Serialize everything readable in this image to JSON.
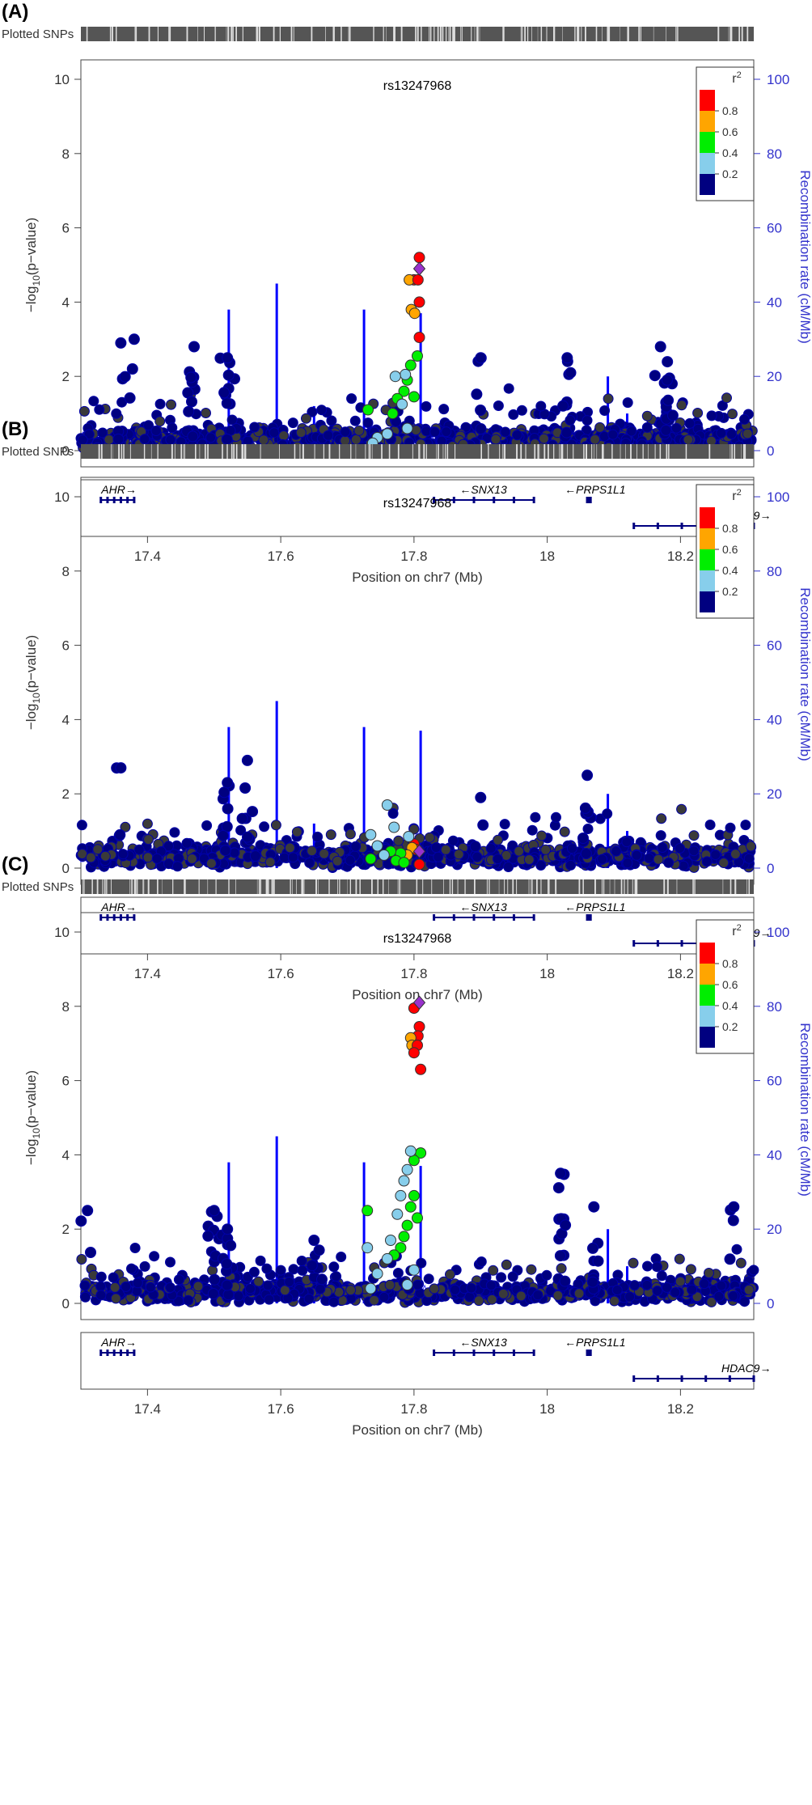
{
  "chart_data": [
    {
      "type": "scatter",
      "panel_label": "(A)",
      "plotted_snps_label": "Plotted SNPs",
      "lead_snp": "rs13247968",
      "xlabel": "Position on chr7 (Mb)",
      "ylabel_main": "−log",
      "ylabel_sub": "10",
      "ylabel_tail": "(p−value)",
      "ylabel_right": "Recombination rate (cM/Mb)",
      "xlim": [
        17.3,
        18.31
      ],
      "ylim": [
        0,
        10.5
      ],
      "x_ticks": [
        "17.4",
        "17.6",
        "17.8",
        "18",
        "18.2"
      ],
      "y_ticks": [
        "0",
        "2",
        "4",
        "6",
        "8",
        "10"
      ],
      "y2_ticks": [
        "0",
        "20",
        "40",
        "60",
        "80",
        "100"
      ],
      "legend": {
        "title": "r",
        "title_sup": "2",
        "entries": [
          "0.8",
          "0.6",
          "0.4",
          "0.2"
        ]
      },
      "genes": [
        {
          "name": "AHR",
          "strand": "+",
          "start": 17.33,
          "end": 17.38,
          "row": 1
        },
        {
          "name": "SNX13",
          "strand": "-",
          "start": 17.83,
          "end": 17.98,
          "row": 1
        },
        {
          "name": "PRPS1L1",
          "strand": "-",
          "start": 18.06,
          "end": 18.065,
          "row": 1
        },
        {
          "name": "HDAC9",
          "strand": "+",
          "start": 18.13,
          "end": 18.31,
          "row": 2
        }
      ],
      "lead_point": {
        "x": 17.808,
        "y": 4.9
      },
      "lead_neighbors": [
        {
          "x": 17.808,
          "y": 5.2,
          "r2": 0.95
        },
        {
          "x": 17.8,
          "y": 4.6,
          "r2": 0.9
        },
        {
          "x": 17.793,
          "y": 4.6,
          "r2": 0.75
        },
        {
          "x": 17.806,
          "y": 4.6,
          "r2": 0.9
        },
        {
          "x": 17.808,
          "y": 4.0,
          "r2": 0.9
        },
        {
          "x": 17.796,
          "y": 3.8,
          "r2": 0.75
        },
        {
          "x": 17.801,
          "y": 3.7,
          "r2": 0.75
        },
        {
          "x": 17.808,
          "y": 3.05,
          "r2": 0.85
        },
        {
          "x": 17.805,
          "y": 2.55,
          "r2": 0.55
        },
        {
          "x": 17.795,
          "y": 2.3,
          "r2": 0.5
        },
        {
          "x": 17.79,
          "y": 1.9,
          "r2": 0.5
        },
        {
          "x": 17.785,
          "y": 1.6,
          "r2": 0.5
        },
        {
          "x": 17.775,
          "y": 1.4,
          "r2": 0.5
        },
        {
          "x": 17.768,
          "y": 1.0,
          "r2": 0.5
        },
        {
          "x": 17.782,
          "y": 1.25,
          "r2": 0.3
        },
        {
          "x": 17.787,
          "y": 2.05,
          "r2": 0.3
        },
        {
          "x": 17.772,
          "y": 2.0,
          "r2": 0.3
        },
        {
          "x": 17.79,
          "y": 0.6,
          "r2": 0.3
        },
        {
          "x": 17.76,
          "y": 0.45,
          "r2": 0.3
        },
        {
          "x": 17.745,
          "y": 0.35,
          "r2": 0.3
        },
        {
          "x": 17.738,
          "y": 0.2,
          "r2": 0.3
        },
        {
          "x": 17.8,
          "y": 1.45,
          "r2": 0.5
        },
        {
          "x": 17.731,
          "y": 1.1,
          "r2": 0.5
        }
      ],
      "peaks": [
        {
          "x": 17.36,
          "y": 2.9,
          "n": 5
        },
        {
          "x": 17.38,
          "y": 3.0,
          "n": 2
        },
        {
          "x": 17.47,
          "y": 2.8,
          "n": 10
        },
        {
          "x": 17.52,
          "y": 2.5,
          "n": 10
        },
        {
          "x": 17.9,
          "y": 2.5,
          "n": 5
        },
        {
          "x": 18.03,
          "y": 2.5,
          "n": 8
        },
        {
          "x": 18.17,
          "y": 2.8,
          "n": 4
        },
        {
          "x": 18.18,
          "y": 1.9,
          "n": 12
        }
      ],
      "recomb_spikes": [
        {
          "x": 17.522,
          "rate": 38
        },
        {
          "x": 17.594,
          "rate": 45
        },
        {
          "x": 17.725,
          "rate": 38
        },
        {
          "x": 17.81,
          "rate": 37
        },
        {
          "x": 18.091,
          "rate": 20
        },
        {
          "x": 17.65,
          "rate": 12
        },
        {
          "x": 18.12,
          "rate": 10
        }
      ]
    },
    {
      "type": "scatter",
      "panel_label": "(B)",
      "plotted_snps_label": "Plotted SNPs",
      "lead_snp": "rs13247968",
      "xlabel": "Position on chr7 (Mb)",
      "ylabel_main": "−log",
      "ylabel_sub": "10",
      "ylabel_tail": "(p−value)",
      "ylabel_right": "Recombination rate (cM/Mb)",
      "xlim": [
        17.3,
        18.31
      ],
      "ylim": [
        0,
        10.5
      ],
      "x_ticks": [
        "17.4",
        "17.6",
        "17.8",
        "18",
        "18.2"
      ],
      "y_ticks": [
        "0",
        "2",
        "4",
        "6",
        "8",
        "10"
      ],
      "y2_ticks": [
        "0",
        "20",
        "40",
        "60",
        "80",
        "100"
      ],
      "legend": {
        "title": "r",
        "title_sup": "2",
        "entries": [
          "0.8",
          "0.6",
          "0.4",
          "0.2"
        ]
      },
      "genes": [
        {
          "name": "AHR",
          "strand": "+",
          "start": 17.33,
          "end": 17.38,
          "row": 1
        },
        {
          "name": "SNX13",
          "strand": "-",
          "start": 17.83,
          "end": 17.98,
          "row": 1
        },
        {
          "name": "PRPS1L1",
          "strand": "-",
          "start": 18.06,
          "end": 18.065,
          "row": 1
        },
        {
          "name": "HDAC9",
          "strand": "+",
          "start": 18.13,
          "end": 18.31,
          "row": 2
        }
      ],
      "lead_point": {
        "x": 17.808,
        "y": 0.45
      },
      "lead_neighbors": [
        {
          "x": 17.8,
          "y": 0.65,
          "r2": 0.95
        },
        {
          "x": 17.803,
          "y": 0.5,
          "r2": 0.9
        },
        {
          "x": 17.808,
          "y": 0.1,
          "r2": 0.9
        },
        {
          "x": 17.797,
          "y": 0.55,
          "r2": 0.75
        },
        {
          "x": 17.79,
          "y": 0.35,
          "r2": 0.75
        },
        {
          "x": 17.78,
          "y": 0.4,
          "r2": 0.5
        },
        {
          "x": 17.773,
          "y": 0.2,
          "r2": 0.5
        },
        {
          "x": 17.765,
          "y": 0.45,
          "r2": 0.5
        },
        {
          "x": 17.785,
          "y": 0.15,
          "r2": 0.5
        },
        {
          "x": 17.735,
          "y": 0.25,
          "r2": 0.5
        },
        {
          "x": 17.745,
          "y": 0.6,
          "r2": 0.3
        },
        {
          "x": 17.755,
          "y": 0.35,
          "r2": 0.3
        },
        {
          "x": 17.76,
          "y": 1.7,
          "r2": 0.3
        },
        {
          "x": 17.77,
          "y": 1.1,
          "r2": 0.3
        },
        {
          "x": 17.735,
          "y": 0.9,
          "r2": 0.3
        },
        {
          "x": 17.792,
          "y": 0.85,
          "r2": 0.3
        }
      ],
      "peaks": [
        {
          "x": 17.36,
          "y": 2.7,
          "n": 3
        },
        {
          "x": 17.55,
          "y": 2.9,
          "n": 8
        },
        {
          "x": 17.52,
          "y": 2.3,
          "n": 8
        },
        {
          "x": 18.06,
          "y": 2.5,
          "n": 8
        },
        {
          "x": 17.9,
          "y": 1.9,
          "n": 2
        }
      ],
      "recomb_spikes": [
        {
          "x": 17.522,
          "rate": 38
        },
        {
          "x": 17.594,
          "rate": 45
        },
        {
          "x": 17.725,
          "rate": 38
        },
        {
          "x": 17.81,
          "rate": 37
        },
        {
          "x": 18.091,
          "rate": 20
        },
        {
          "x": 17.65,
          "rate": 12
        },
        {
          "x": 18.12,
          "rate": 10
        }
      ]
    },
    {
      "type": "scatter",
      "panel_label": "(C)",
      "plotted_snps_label": "Plotted SNPs",
      "lead_snp": "rs13247968",
      "xlabel": "Position on chr7 (Mb)",
      "ylabel_main": "−log",
      "ylabel_sub": "10",
      "ylabel_tail": "(p−value)",
      "ylabel_right": "Recombination rate (cM/Mb)",
      "xlim": [
        17.3,
        18.31
      ],
      "ylim": [
        0,
        10.5
      ],
      "x_ticks": [
        "17.4",
        "17.6",
        "17.8",
        "18",
        "18.2"
      ],
      "y_ticks": [
        "0",
        "2",
        "4",
        "6",
        "8",
        "10"
      ],
      "y2_ticks": [
        "0",
        "20",
        "40",
        "60",
        "80",
        "100"
      ],
      "legend": {
        "title": "r",
        "title_sup": "2",
        "entries": [
          "0.8",
          "0.6",
          "0.4",
          "0.2"
        ]
      },
      "genes": [
        {
          "name": "AHR",
          "strand": "+",
          "start": 17.33,
          "end": 17.38,
          "row": 1
        },
        {
          "name": "SNX13",
          "strand": "-",
          "start": 17.83,
          "end": 17.98,
          "row": 1
        },
        {
          "name": "PRPS1L1",
          "strand": "-",
          "start": 18.06,
          "end": 18.065,
          "row": 1
        },
        {
          "name": "HDAC9",
          "strand": "+",
          "start": 18.13,
          "end": 18.31,
          "row": 2
        }
      ],
      "lead_point": {
        "x": 17.808,
        "y": 8.1
      },
      "lead_neighbors": [
        {
          "x": 17.8,
          "y": 7.95,
          "r2": 0.95
        },
        {
          "x": 17.808,
          "y": 7.45,
          "r2": 0.95
        },
        {
          "x": 17.806,
          "y": 7.2,
          "r2": 0.9
        },
        {
          "x": 17.795,
          "y": 7.15,
          "r2": 0.75
        },
        {
          "x": 17.797,
          "y": 6.95,
          "r2": 0.75
        },
        {
          "x": 17.805,
          "y": 6.95,
          "r2": 0.9
        },
        {
          "x": 17.8,
          "y": 6.75,
          "r2": 0.9
        },
        {
          "x": 17.81,
          "y": 6.3,
          "r2": 0.9
        },
        {
          "x": 17.81,
          "y": 4.05,
          "r2": 0.55
        },
        {
          "x": 17.8,
          "y": 3.85,
          "r2": 0.55
        },
        {
          "x": 17.795,
          "y": 4.1,
          "r2": 0.3
        },
        {
          "x": 17.79,
          "y": 3.6,
          "r2": 0.3
        },
        {
          "x": 17.785,
          "y": 3.3,
          "r2": 0.3
        },
        {
          "x": 17.78,
          "y": 2.9,
          "r2": 0.3
        },
        {
          "x": 17.8,
          "y": 2.9,
          "r2": 0.55
        },
        {
          "x": 17.795,
          "y": 2.6,
          "r2": 0.55
        },
        {
          "x": 17.805,
          "y": 2.3,
          "r2": 0.55
        },
        {
          "x": 17.79,
          "y": 2.1,
          "r2": 0.55
        },
        {
          "x": 17.785,
          "y": 1.8,
          "r2": 0.55
        },
        {
          "x": 17.78,
          "y": 1.5,
          "r2": 0.55
        },
        {
          "x": 17.77,
          "y": 1.3,
          "r2": 0.55
        },
        {
          "x": 17.73,
          "y": 2.5,
          "r2": 0.55
        },
        {
          "x": 17.775,
          "y": 2.4,
          "r2": 0.3
        },
        {
          "x": 17.765,
          "y": 1.7,
          "r2": 0.3
        },
        {
          "x": 17.76,
          "y": 1.2,
          "r2": 0.3
        },
        {
          "x": 17.745,
          "y": 0.8,
          "r2": 0.3
        },
        {
          "x": 17.735,
          "y": 0.4,
          "r2": 0.3
        },
        {
          "x": 17.73,
          "y": 1.5,
          "r2": 0.3
        },
        {
          "x": 17.8,
          "y": 0.9,
          "r2": 0.3
        },
        {
          "x": 17.79,
          "y": 0.5,
          "r2": 0.3
        }
      ],
      "peaks": [
        {
          "x": 17.5,
          "y": 2.5,
          "n": 10
        },
        {
          "x": 17.52,
          "y": 2.0,
          "n": 10
        },
        {
          "x": 18.02,
          "y": 3.5,
          "n": 14
        },
        {
          "x": 18.07,
          "y": 2.6,
          "n": 10
        },
        {
          "x": 18.28,
          "y": 2.6,
          "n": 3
        },
        {
          "x": 17.31,
          "y": 2.5,
          "n": 2
        },
        {
          "x": 17.65,
          "y": 1.7,
          "n": 6
        }
      ],
      "recomb_spikes": [
        {
          "x": 17.522,
          "rate": 38
        },
        {
          "x": 17.594,
          "rate": 45
        },
        {
          "x": 17.725,
          "rate": 38
        },
        {
          "x": 17.81,
          "rate": 37
        },
        {
          "x": 18.091,
          "rate": 20
        },
        {
          "x": 17.65,
          "rate": 12
        },
        {
          "x": 18.12,
          "rate": 10
        }
      ]
    }
  ],
  "colors": {
    "r2_high": "#ff0000",
    "r2_08": "#ffa500",
    "r2_06": "#00ee00",
    "r2_04": "#87ceeb",
    "r2_low": "#000080",
    "lead": "#9932cc",
    "recomb": "#0000ff",
    "right_axis": "#3333cc",
    "snp_bar": "#555555",
    "gene": "#000080"
  }
}
